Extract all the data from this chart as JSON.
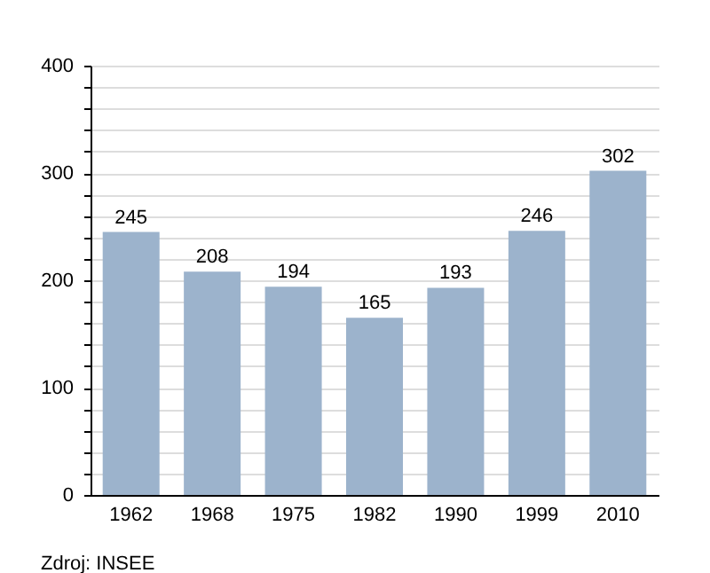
{
  "chart_data": {
    "type": "bar",
    "categories": [
      "1962",
      "1968",
      "1975",
      "1982",
      "1990",
      "1999",
      "2010"
    ],
    "values": [
      245,
      208,
      194,
      165,
      193,
      246,
      302
    ],
    "color": "#9cb3cc",
    "ylim": [
      0,
      400
    ],
    "yticks": [
      0,
      {
        "value": 20,
        "label": null
      },
      {
        "value": 40,
        "label": null
      },
      {
        "value": 60,
        "label": null
      },
      {
        "value": 80,
        "label": null
      },
      100,
      {
        "value": 120,
        "label": null
      },
      {
        "value": 140,
        "label": null
      },
      {
        "value": 160,
        "label": null
      },
      {
        "value": 180,
        "label": null
      },
      200,
      {
        "value": 220,
        "label": null
      },
      {
        "value": 240,
        "label": null
      },
      {
        "value": 260,
        "label": null
      },
      {
        "value": 280,
        "label": null
      },
      300,
      {
        "value": 320,
        "label": null
      },
      {
        "value": 340,
        "label": null
      },
      {
        "value": 360,
        "label": null
      },
      {
        "value": 380,
        "label": null
      },
      400
    ],
    "grid": "y",
    "data_labels": true,
    "annotations": [
      "Zdroj: INSEE"
    ]
  }
}
